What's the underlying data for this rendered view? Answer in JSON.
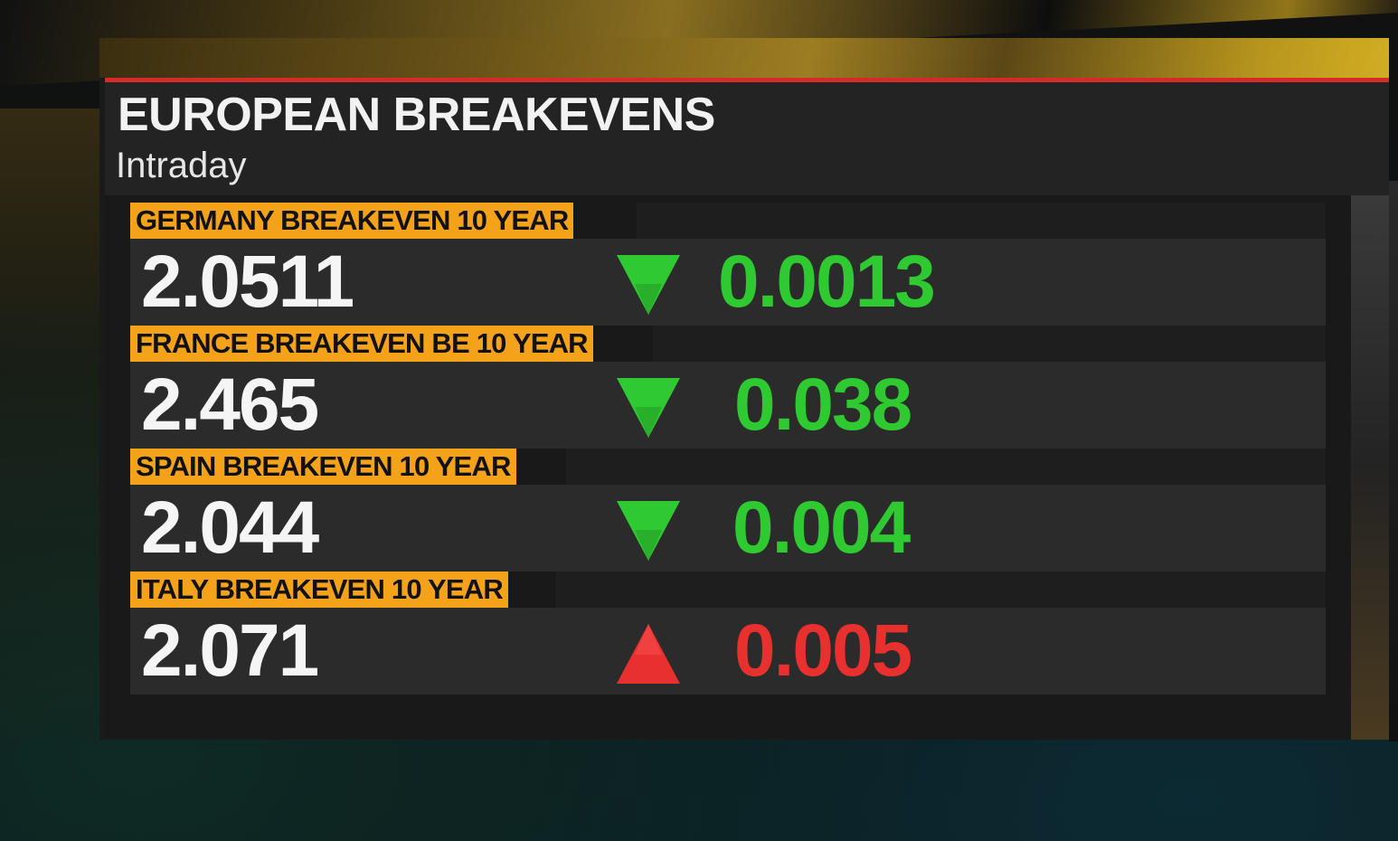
{
  "title": "EUROPEAN BREAKEVENS",
  "subtitle": "Intraday",
  "colors": {
    "up": "#e8302e",
    "down": "#2fca32",
    "label_bg": "#f4a21a",
    "accent_rule": "#d62b2b"
  },
  "rows": [
    {
      "label": "GERMANY BREAKEVEN 10 YEAR",
      "value": "2.0511",
      "direction": "down",
      "change": "0.0013"
    },
    {
      "label": "FRANCE BREAKEVEN BE 10 YEAR",
      "value": "2.465",
      "direction": "down",
      "change": "0.038"
    },
    {
      "label": "SPAIN BREAKEVEN 10 YEAR",
      "value": "2.044",
      "direction": "down",
      "change": "0.004"
    },
    {
      "label": "ITALY BREAKEVEN 10 YEAR",
      "value": "2.071",
      "direction": "up",
      "change": "0.005"
    }
  ]
}
